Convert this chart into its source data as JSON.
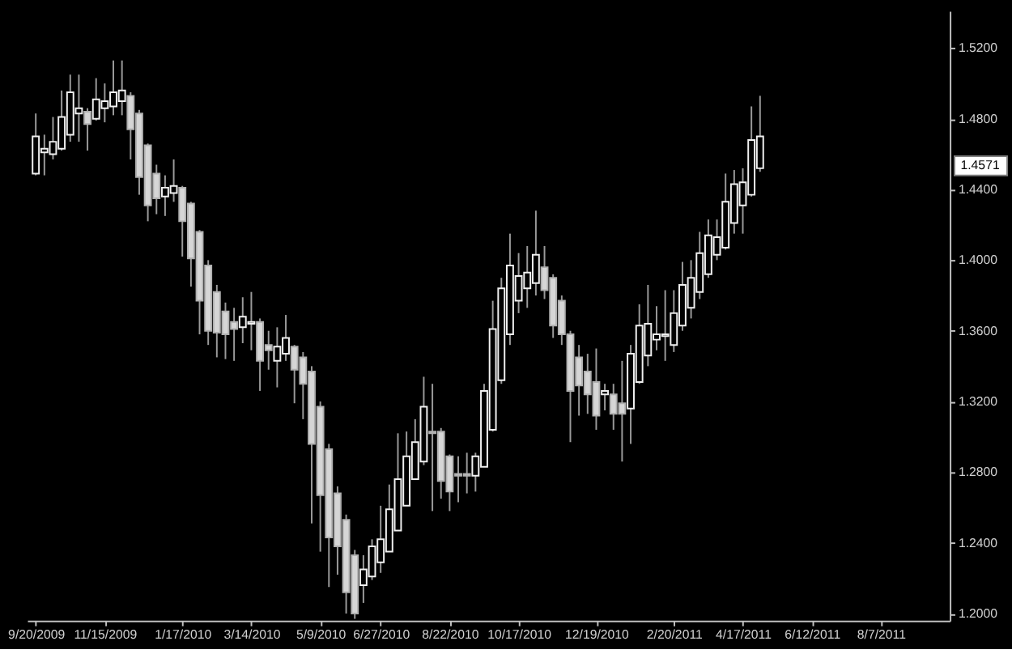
{
  "chart_data": {
    "type": "candlestick",
    "x": [
      "2009-09-20",
      "2009-09-27",
      "2009-10-04",
      "2009-10-11",
      "2009-10-18",
      "2009-10-25",
      "2009-11-01",
      "2009-11-08",
      "2009-11-15",
      "2009-11-22",
      "2009-11-29",
      "2009-12-06",
      "2009-12-13",
      "2009-12-20",
      "2009-12-27",
      "2010-01-03",
      "2010-01-10",
      "2010-01-17",
      "2010-01-24",
      "2010-01-31",
      "2010-02-07",
      "2010-02-14",
      "2010-02-21",
      "2010-02-28",
      "2010-03-07",
      "2010-03-14",
      "2010-03-21",
      "2010-03-28",
      "2010-04-04",
      "2010-04-11",
      "2010-04-18",
      "2010-04-25",
      "2010-05-02",
      "2010-05-09",
      "2010-05-16",
      "2010-05-23",
      "2010-05-30",
      "2010-06-06",
      "2010-06-13",
      "2010-06-20",
      "2010-06-27",
      "2010-07-04",
      "2010-07-11",
      "2010-07-18",
      "2010-07-25",
      "2010-08-01",
      "2010-08-08",
      "2010-08-15",
      "2010-08-22",
      "2010-08-29",
      "2010-09-05",
      "2010-09-12",
      "2010-09-19",
      "2010-09-26",
      "2010-10-03",
      "2010-10-10",
      "2010-10-17",
      "2010-10-24",
      "2010-10-31",
      "2010-11-07",
      "2010-11-14",
      "2010-11-21",
      "2010-11-28",
      "2010-12-05",
      "2010-12-12",
      "2010-12-19",
      "2010-12-26",
      "2011-01-02",
      "2011-01-09",
      "2011-01-16",
      "2011-01-23",
      "2011-01-30",
      "2011-02-06",
      "2011-02-13",
      "2011-02-20",
      "2011-02-27",
      "2011-03-06",
      "2011-03-13",
      "2011-03-20",
      "2011-03-27",
      "2011-04-03",
      "2011-04-10",
      "2011-04-17",
      "2011-04-24",
      "2011-05-01"
    ],
    "ohlc": [
      [
        1.449,
        1.483,
        1.448,
        1.47
      ],
      [
        1.461,
        1.471,
        1.448,
        1.463
      ],
      [
        1.46,
        1.481,
        1.457,
        1.467
      ],
      [
        1.463,
        1.496,
        1.462,
        1.481
      ],
      [
        1.471,
        1.505,
        1.467,
        1.495
      ],
      [
        1.483,
        1.505,
        1.467,
        1.486
      ],
      [
        1.484,
        1.486,
        1.462,
        1.477
      ],
      [
        1.48,
        1.503,
        1.479,
        1.491
      ],
      [
        1.486,
        1.5,
        1.478,
        1.49
      ],
      [
        1.487,
        1.513,
        1.482,
        1.495
      ],
      [
        1.49,
        1.513,
        1.482,
        1.496
      ],
      [
        1.493,
        1.495,
        1.457,
        1.474
      ],
      [
        1.483,
        1.485,
        1.437,
        1.447
      ],
      [
        1.465,
        1.466,
        1.422,
        1.431
      ],
      [
        1.449,
        1.454,
        1.426,
        1.435
      ],
      [
        1.436,
        1.448,
        1.425,
        1.441
      ],
      [
        1.438,
        1.457,
        1.433,
        1.442
      ],
      [
        1.441,
        1.442,
        1.402,
        1.422
      ],
      [
        1.432,
        1.433,
        1.385,
        1.401
      ],
      [
        1.416,
        1.417,
        1.358,
        1.377
      ],
      [
        1.397,
        1.4,
        1.352,
        1.36
      ],
      [
        1.382,
        1.386,
        1.345,
        1.359
      ],
      [
        1.371,
        1.376,
        1.344,
        1.358
      ],
      [
        1.365,
        1.373,
        1.343,
        1.361
      ],
      [
        1.362,
        1.379,
        1.353,
        1.368
      ],
      [
        1.364,
        1.382,
        1.349,
        1.365
      ],
      [
        1.365,
        1.367,
        1.326,
        1.343
      ],
      [
        1.352,
        1.36,
        1.338,
        1.349
      ],
      [
        1.343,
        1.362,
        1.328,
        1.351
      ],
      [
        1.347,
        1.369,
        1.343,
        1.356
      ],
      [
        1.351,
        1.352,
        1.319,
        1.338
      ],
      [
        1.345,
        1.348,
        1.31,
        1.33
      ],
      [
        1.337,
        1.34,
        1.251,
        1.296
      ],
      [
        1.317,
        1.32,
        1.235,
        1.267
      ],
      [
        1.293,
        1.296,
        1.215,
        1.243
      ],
      [
        1.268,
        1.272,
        1.222,
        1.238
      ],
      [
        1.253,
        1.256,
        1.2,
        1.212
      ],
      [
        1.233,
        1.236,
        1.197,
        1.2
      ],
      [
        1.216,
        1.233,
        1.206,
        1.225
      ],
      [
        1.221,
        1.242,
        1.219,
        1.238
      ],
      [
        1.229,
        1.261,
        1.223,
        1.242
      ],
      [
        1.235,
        1.273,
        1.235,
        1.259
      ],
      [
        1.247,
        1.302,
        1.247,
        1.276
      ],
      [
        1.261,
        1.303,
        1.261,
        1.289
      ],
      [
        1.276,
        1.31,
        1.276,
        1.297
      ],
      [
        1.286,
        1.334,
        1.284,
        1.317
      ],
      [
        1.303,
        1.33,
        1.258,
        1.302
      ],
      [
        1.303,
        1.305,
        1.265,
        1.275
      ],
      [
        1.289,
        1.29,
        1.258,
        1.269
      ],
      [
        1.279,
        1.289,
        1.263,
        1.278
      ],
      [
        1.279,
        1.291,
        1.268,
        1.278
      ],
      [
        1.278,
        1.291,
        1.269,
        1.289
      ],
      [
        1.283,
        1.33,
        1.283,
        1.326
      ],
      [
        1.304,
        1.377,
        1.303,
        1.361
      ],
      [
        1.332,
        1.39,
        1.33,
        1.384
      ],
      [
        1.358,
        1.415,
        1.352,
        1.397
      ],
      [
        1.377,
        1.404,
        1.37,
        1.391
      ],
      [
        1.384,
        1.408,
        1.373,
        1.393
      ],
      [
        1.387,
        1.428,
        1.38,
        1.403
      ],
      [
        1.396,
        1.408,
        1.378,
        1.383
      ],
      [
        1.39,
        1.392,
        1.356,
        1.363
      ],
      [
        1.377,
        1.38,
        1.352,
        1.358
      ],
      [
        1.358,
        1.36,
        1.297,
        1.326
      ],
      [
        1.345,
        1.352,
        1.312,
        1.329
      ],
      [
        1.337,
        1.347,
        1.313,
        1.324
      ],
      [
        1.331,
        1.35,
        1.304,
        1.312
      ],
      [
        1.324,
        1.33,
        1.315,
        1.326
      ],
      [
        1.324,
        1.33,
        1.304,
        1.313
      ],
      [
        1.319,
        1.343,
        1.286,
        1.313
      ],
      [
        1.316,
        1.352,
        1.296,
        1.347
      ],
      [
        1.331,
        1.375,
        1.33,
        1.363
      ],
      [
        1.346,
        1.386,
        1.34,
        1.364
      ],
      [
        1.355,
        1.374,
        1.349,
        1.358
      ],
      [
        1.357,
        1.383,
        1.343,
        1.358
      ],
      [
        1.352,
        1.383,
        1.348,
        1.37
      ],
      [
        1.363,
        1.399,
        1.36,
        1.386
      ],
      [
        1.373,
        1.4,
        1.367,
        1.39
      ],
      [
        1.382,
        1.416,
        1.378,
        1.404
      ],
      [
        1.392,
        1.423,
        1.39,
        1.414
      ],
      [
        1.403,
        1.423,
        1.4,
        1.413
      ],
      [
        1.407,
        1.449,
        1.406,
        1.433
      ],
      [
        1.421,
        1.451,
        1.415,
        1.443
      ],
      [
        1.431,
        1.452,
        1.415,
        1.444
      ],
      [
        1.437,
        1.487,
        1.436,
        1.468
      ],
      [
        1.452,
        1.493,
        1.45,
        1.47
      ]
    ],
    "xlim": [
      "2009-09-13",
      "2011-10-02"
    ],
    "xticks": [
      {
        "value": "2009-09-20",
        "label": "9/20/2009"
      },
      {
        "value": "2009-11-15",
        "label": "11/15/2009"
      },
      {
        "value": "2010-01-17",
        "label": "1/17/2010"
      },
      {
        "value": "2010-03-14",
        "label": "3/14/2010"
      },
      {
        "value": "2010-05-09",
        "label": "5/9/2010"
      },
      {
        "value": "2010-06-27",
        "label": "6/27/2010"
      },
      {
        "value": "2010-08-22",
        "label": "8/22/2010"
      },
      {
        "value": "2010-10-17",
        "label": "10/17/2010"
      },
      {
        "value": "2010-12-19",
        "label": "12/19/2010"
      },
      {
        "value": "2011-02-20",
        "label": "2/20/2011"
      },
      {
        "value": "2011-04-17",
        "label": "4/17/2011"
      },
      {
        "value": "2011-06-12",
        "label": "6/12/2011"
      },
      {
        "value": "2011-08-07",
        "label": "8/7/2011"
      }
    ],
    "ylim": [
      1.196,
      1.541
    ],
    "yticks": [
      {
        "value": 1.2,
        "label": "1.2000"
      },
      {
        "value": 1.24,
        "label": "1.2400"
      },
      {
        "value": 1.28,
        "label": "1.2800"
      },
      {
        "value": 1.32,
        "label": "1.3200"
      },
      {
        "value": 1.36,
        "label": "1.3600"
      },
      {
        "value": 1.4,
        "label": "1.4000"
      },
      {
        "value": 1.44,
        "label": "1.4400"
      },
      {
        "value": 1.48,
        "label": "1.4800"
      },
      {
        "value": 1.52,
        "label": "1.5200"
      }
    ],
    "annotations": [
      "1.4571"
    ],
    "grid": false
  }
}
